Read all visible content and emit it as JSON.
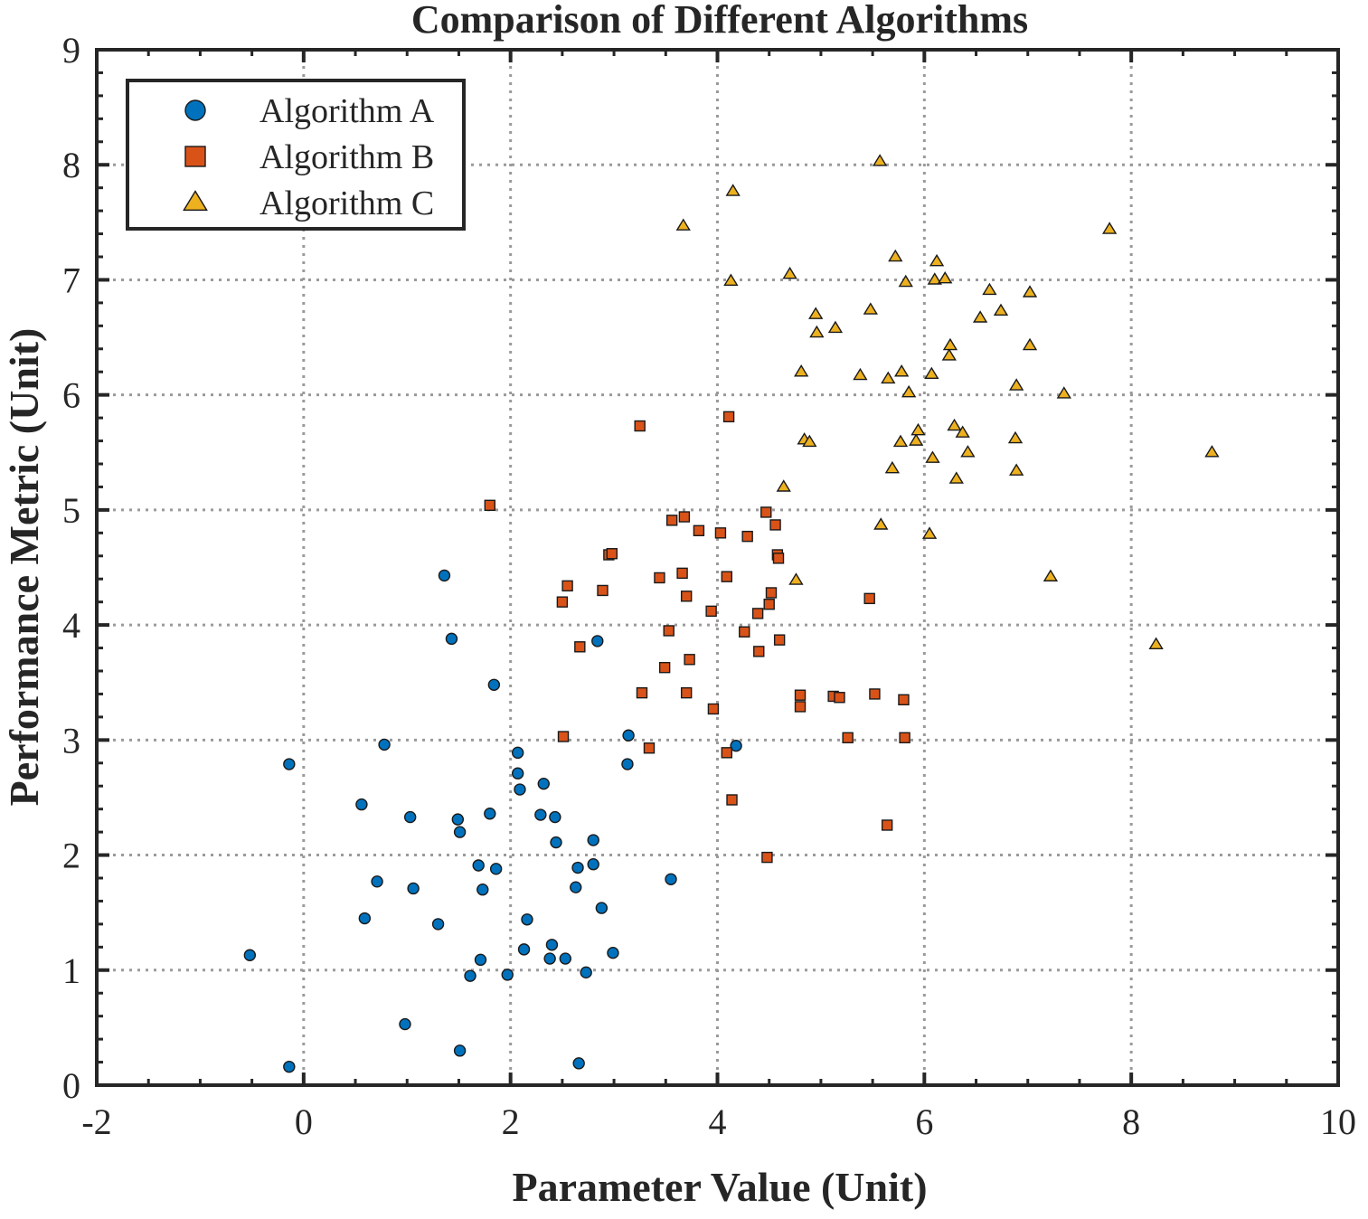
{
  "chart_data": {
    "type": "scatter",
    "title": "Comparison of Different Algorithms",
    "xlabel": "Parameter Value (Unit)",
    "ylabel": "Performance Metric (Unit)",
    "xlim": [
      -2,
      10
    ],
    "ylim": [
      0,
      9
    ],
    "x_ticks": [
      -2,
      0,
      2,
      4,
      6,
      8,
      10
    ],
    "y_ticks": [
      0,
      1,
      2,
      3,
      4,
      5,
      6,
      7,
      8,
      9
    ],
    "grid": true,
    "legend_position": "top-left",
    "series": [
      {
        "name": "Algorithm A",
        "marker": "circle",
        "color": "#0072BD",
        "points": [
          [
            -0.52,
            1.13
          ],
          [
            -0.14,
            0.16
          ],
          [
            -0.14,
            2.79
          ],
          [
            0.56,
            2.44
          ],
          [
            0.59,
            1.45
          ],
          [
            0.71,
            1.77
          ],
          [
            0.78,
            2.96
          ],
          [
            0.98,
            0.53
          ],
          [
            1.03,
            2.33
          ],
          [
            1.06,
            1.71
          ],
          [
            1.3,
            1.4
          ],
          [
            1.36,
            4.43
          ],
          [
            1.43,
            3.88
          ],
          [
            1.49,
            2.31
          ],
          [
            1.51,
            2.2
          ],
          [
            1.51,
            0.3
          ],
          [
            1.61,
            0.95
          ],
          [
            1.69,
            1.91
          ],
          [
            1.71,
            1.09
          ],
          [
            1.73,
            1.7
          ],
          [
            1.8,
            2.36
          ],
          [
            1.84,
            3.48
          ],
          [
            1.86,
            1.88
          ],
          [
            1.97,
            0.96
          ],
          [
            2.07,
            2.89
          ],
          [
            2.07,
            2.71
          ],
          [
            2.09,
            2.57
          ],
          [
            2.13,
            1.18
          ],
          [
            2.16,
            1.44
          ],
          [
            2.29,
            2.35
          ],
          [
            2.32,
            2.62
          ],
          [
            2.38,
            1.1
          ],
          [
            2.4,
            1.22
          ],
          [
            2.43,
            2.33
          ],
          [
            2.44,
            2.11
          ],
          [
            2.53,
            1.1
          ],
          [
            2.63,
            1.72
          ],
          [
            2.65,
            1.89
          ],
          [
            2.66,
            0.19
          ],
          [
            2.73,
            0.98
          ],
          [
            2.8,
            2.13
          ],
          [
            2.8,
            1.92
          ],
          [
            2.84,
            3.86
          ],
          [
            2.88,
            1.54
          ],
          [
            2.99,
            1.15
          ],
          [
            3.13,
            2.79
          ],
          [
            3.14,
            3.04
          ],
          [
            3.55,
            1.79
          ],
          [
            4.18,
            2.95
          ]
        ]
      },
      {
        "name": "Algorithm B",
        "marker": "square",
        "color": "#D95319",
        "points": [
          [
            1.8,
            5.04
          ],
          [
            2.5,
            4.2
          ],
          [
            2.51,
            3.03
          ],
          [
            2.55,
            4.34
          ],
          [
            2.67,
            3.81
          ],
          [
            2.89,
            4.3
          ],
          [
            2.95,
            4.61
          ],
          [
            2.98,
            4.62
          ],
          [
            3.25,
            5.73
          ],
          [
            3.27,
            3.41
          ],
          [
            3.34,
            2.93
          ],
          [
            3.44,
            4.41
          ],
          [
            3.49,
            3.63
          ],
          [
            3.53,
            3.95
          ],
          [
            3.56,
            4.91
          ],
          [
            3.66,
            4.45
          ],
          [
            3.68,
            4.94
          ],
          [
            3.7,
            4.25
          ],
          [
            3.7,
            3.41
          ],
          [
            3.73,
            3.7
          ],
          [
            3.82,
            4.82
          ],
          [
            3.94,
            4.12
          ],
          [
            3.96,
            3.27
          ],
          [
            4.03,
            4.8
          ],
          [
            4.09,
            4.42
          ],
          [
            4.09,
            2.89
          ],
          [
            4.11,
            5.81
          ],
          [
            4.14,
            2.48
          ],
          [
            4.26,
            3.94
          ],
          [
            4.29,
            4.77
          ],
          [
            4.39,
            4.1
          ],
          [
            4.4,
            3.77
          ],
          [
            4.47,
            4.98
          ],
          [
            4.48,
            1.98
          ],
          [
            4.5,
            4.18
          ],
          [
            4.52,
            4.28
          ],
          [
            4.56,
            4.87
          ],
          [
            4.58,
            4.61
          ],
          [
            4.59,
            4.58
          ],
          [
            4.6,
            3.87
          ],
          [
            4.8,
            3.39
          ],
          [
            4.8,
            3.29
          ],
          [
            5.12,
            3.38
          ],
          [
            5.18,
            3.37
          ],
          [
            5.26,
            3.02
          ],
          [
            5.47,
            4.23
          ],
          [
            5.52,
            3.4
          ],
          [
            5.64,
            2.26
          ],
          [
            5.8,
            3.35
          ],
          [
            5.81,
            3.02
          ]
        ]
      },
      {
        "name": "Algorithm C",
        "marker": "triangle",
        "color": "#EDB120",
        "points": [
          [
            3.67,
            7.47
          ],
          [
            4.13,
            6.99
          ],
          [
            4.15,
            7.77
          ],
          [
            4.64,
            5.2
          ],
          [
            4.7,
            7.05
          ],
          [
            4.76,
            4.39
          ],
          [
            4.81,
            6.2
          ],
          [
            4.84,
            5.61
          ],
          [
            4.89,
            5.59
          ],
          [
            4.95,
            6.7
          ],
          [
            4.96,
            6.54
          ],
          [
            5.14,
            6.58
          ],
          [
            5.38,
            6.17
          ],
          [
            5.48,
            6.74
          ],
          [
            5.57,
            8.03
          ],
          [
            5.58,
            4.87
          ],
          [
            5.65,
            6.14
          ],
          [
            5.69,
            5.36
          ],
          [
            5.72,
            7.2
          ],
          [
            5.77,
            5.59
          ],
          [
            5.78,
            6.2
          ],
          [
            5.82,
            6.98
          ],
          [
            5.85,
            6.02
          ],
          [
            5.92,
            5.6
          ],
          [
            5.94,
            5.69
          ],
          [
            6.05,
            4.79
          ],
          [
            6.07,
            6.18
          ],
          [
            6.08,
            5.45
          ],
          [
            6.1,
            7.0
          ],
          [
            6.12,
            7.16
          ],
          [
            6.2,
            7.01
          ],
          [
            6.24,
            6.34
          ],
          [
            6.25,
            6.43
          ],
          [
            6.29,
            5.73
          ],
          [
            6.31,
            5.27
          ],
          [
            6.37,
            5.67
          ],
          [
            6.42,
            5.5
          ],
          [
            6.54,
            6.67
          ],
          [
            6.63,
            6.91
          ],
          [
            6.74,
            6.73
          ],
          [
            6.88,
            5.62
          ],
          [
            6.89,
            6.08
          ],
          [
            6.89,
            5.34
          ],
          [
            7.02,
            6.89
          ],
          [
            7.02,
            6.43
          ],
          [
            7.22,
            4.42
          ],
          [
            7.35,
            6.01
          ],
          [
            7.79,
            7.44
          ],
          [
            8.24,
            3.83
          ],
          [
            8.78,
            5.5
          ]
        ]
      }
    ]
  }
}
